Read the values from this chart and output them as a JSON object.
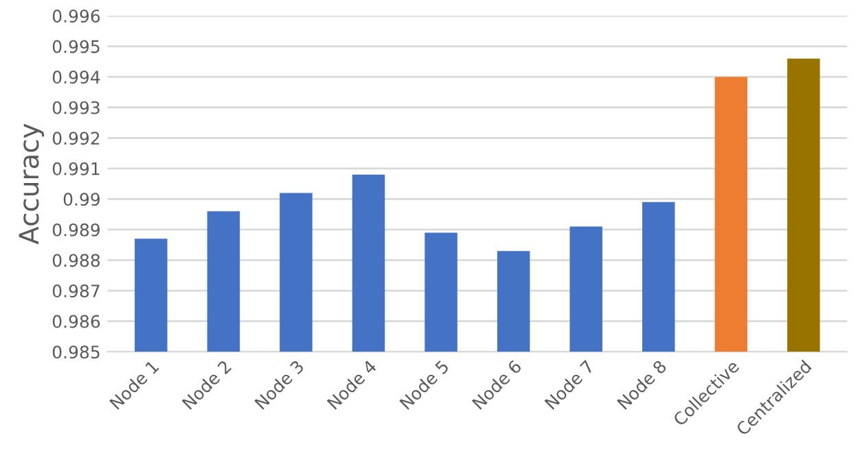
{
  "chart_data": {
    "type": "bar",
    "ylabel": "Accuracy",
    "categories": [
      "Node 1",
      "Node 2",
      "Node 3",
      "Node 4",
      "Node 5",
      "Node 6",
      "Node 7",
      "Node 8",
      "Collective",
      "Centralized"
    ],
    "values": [
      0.9887,
      0.9896,
      0.9902,
      0.9908,
      0.9889,
      0.9883,
      0.9891,
      0.9899,
      0.994,
      0.9946
    ],
    "colors": [
      "#4472c4",
      "#4472c4",
      "#4472c4",
      "#4472c4",
      "#4472c4",
      "#4472c4",
      "#4472c4",
      "#4472c4",
      "#ed7d31",
      "#997300"
    ],
    "ylim": [
      0.985,
      0.996
    ],
    "yticks": [
      0.985,
      0.986,
      0.987,
      0.988,
      0.989,
      0.99,
      0.991,
      0.992,
      0.993,
      0.994,
      0.995,
      0.996
    ],
    "grid": "y",
    "legend": false
  }
}
